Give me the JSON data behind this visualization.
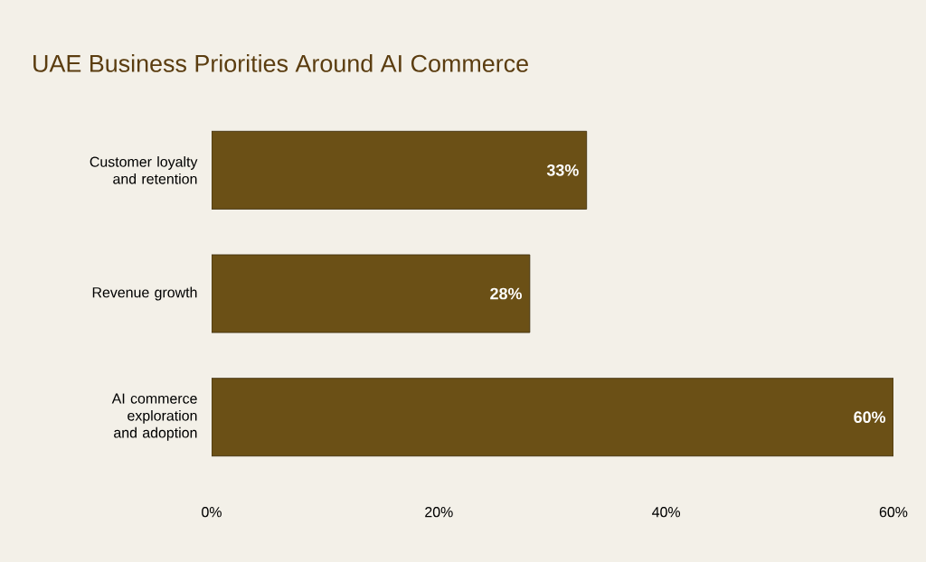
{
  "chart_data": {
    "type": "bar",
    "orientation": "horizontal",
    "title": "UAE Business Priorities Around AI Commerce",
    "categories": [
      "Customer loyalty and retention",
      "Revenue growth",
      "AI commerce exploration and adoption"
    ],
    "values": [
      33,
      28,
      60
    ],
    "value_labels": [
      "33%",
      "28%",
      "60%"
    ],
    "color": "#6b5016",
    "xlim": [
      0,
      60
    ],
    "xticks": [
      {
        "value": 0,
        "label": "0%"
      },
      {
        "value": 20,
        "label": "20%"
      },
      {
        "value": 40,
        "label": "40%"
      },
      {
        "value": 60,
        "label": "60%"
      }
    ],
    "grid": false
  }
}
